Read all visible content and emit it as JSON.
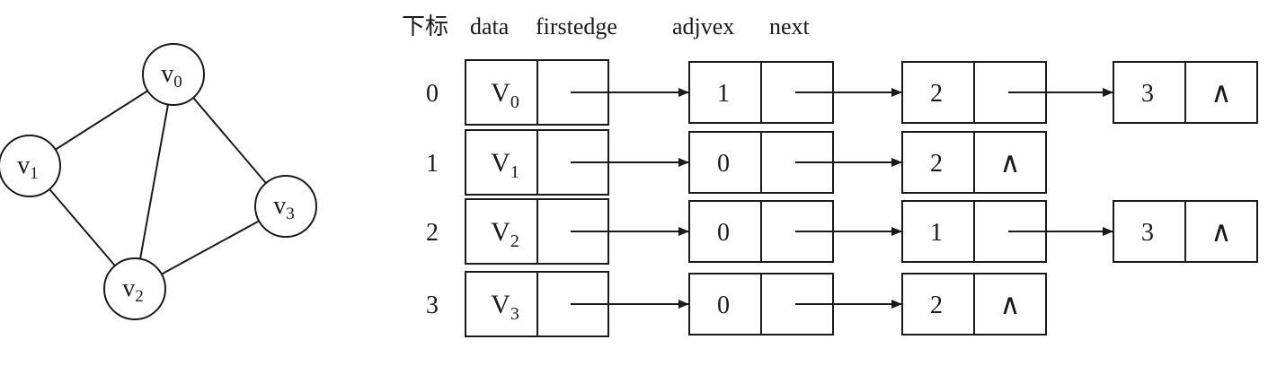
{
  "headers": {
    "index": "下标",
    "data": "data",
    "firstedge": "firstedge",
    "adjvex": "adjvex",
    "next": "next"
  },
  "graph": {
    "nodes": [
      {
        "label": "v",
        "sub": "0"
      },
      {
        "label": "v",
        "sub": "1"
      },
      {
        "label": "v",
        "sub": "2"
      },
      {
        "label": "v",
        "sub": "3"
      }
    ],
    "edges": [
      [
        0,
        1
      ],
      [
        0,
        2
      ],
      [
        0,
        3
      ],
      [
        1,
        2
      ],
      [
        2,
        3
      ]
    ]
  },
  "vertex_table": [
    {
      "index": "0",
      "data": "V",
      "sub": "0"
    },
    {
      "index": "1",
      "data": "V",
      "sub": "1"
    },
    {
      "index": "2",
      "data": "V",
      "sub": "2"
    },
    {
      "index": "3",
      "data": "V",
      "sub": "3"
    }
  ],
  "adjacency_lists": [
    [
      "1",
      "2",
      "3"
    ],
    [
      "0",
      "2"
    ],
    [
      "0",
      "1",
      "3"
    ],
    [
      "0",
      "2"
    ]
  ],
  "null_symbol": "∧"
}
